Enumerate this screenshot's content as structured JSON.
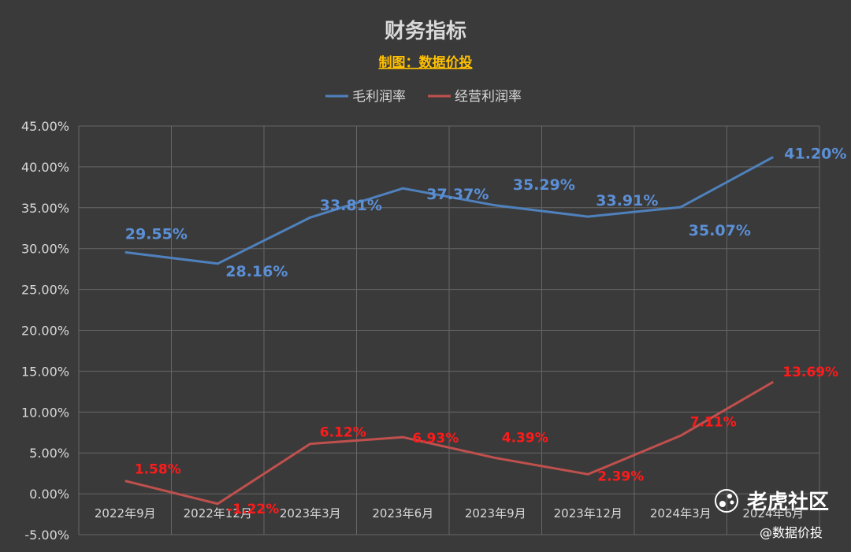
{
  "chart_data": {
    "type": "line",
    "title": "财务指标",
    "subtitle": "制图：数据价投",
    "categories": [
      "2022年9月",
      "2022年12月",
      "2023年3月",
      "2023年6月",
      "2023年9月",
      "2023年12月",
      "2024年3月",
      "2024年6月"
    ],
    "series": [
      {
        "name": "毛利润率",
        "values": [
          29.55,
          28.16,
          33.81,
          37.37,
          35.29,
          33.91,
          35.07,
          41.2
        ],
        "labels": [
          "29.55%",
          "28.16%",
          "33.81%",
          "37.37%",
          "35.29%",
          "33.91%",
          "35.07%",
          "41.20%"
        ],
        "color": "#4f81bd"
      },
      {
        "name": "经营利润率",
        "values": [
          1.58,
          -1.22,
          6.12,
          6.93,
          4.39,
          2.39,
          7.11,
          13.69
        ],
        "labels": [
          "1.58%",
          "-1.22%",
          "6.12%",
          "6.93%",
          "4.39%",
          "2.39%",
          "7.11%",
          "13.69%"
        ],
        "color": "#c0504d"
      }
    ],
    "yticks": [
      "45.00%",
      "40.00%",
      "35.00%",
      "30.00%",
      "25.00%",
      "20.00%",
      "15.00%",
      "10.00%",
      "5.00%",
      "0.00%",
      "-5.00%"
    ],
    "ylim": [
      -5,
      45
    ],
    "grid": true,
    "legend_position": "top-center"
  },
  "watermark": {
    "brand": "老虎社区",
    "handle": "@数据价投",
    "icon": "tiger-paw-icon"
  }
}
